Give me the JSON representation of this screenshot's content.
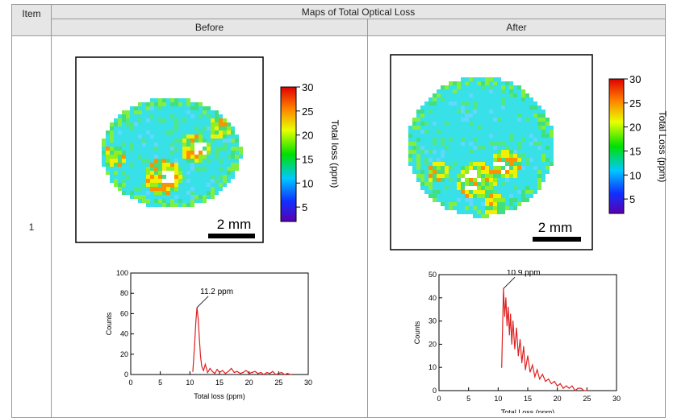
{
  "table": {
    "header_item": "Item",
    "header_title": "Maps of Total Optical Loss",
    "col_before": "Before",
    "col_after": "After",
    "row_item": "1"
  },
  "before_map": {
    "colorbar_ticks": [
      "30",
      "25",
      "20",
      "15",
      "10",
      "5"
    ],
    "colorbar_label": "Total loss (ppm)",
    "scale_label": "2 mm"
  },
  "after_map": {
    "colorbar_ticks": [
      "30",
      "25",
      "20",
      "15",
      "10",
      "5"
    ],
    "colorbar_label": "Total Loss (ppm)",
    "scale_label": "2 mm"
  },
  "chart_data": [
    {
      "type": "line",
      "xlabel": "Total loss (ppm)",
      "ylabel": "Counts",
      "xlim": [
        0,
        30
      ],
      "ylim": [
        0,
        100
      ],
      "xticks": [
        0,
        5,
        10,
        15,
        20,
        25,
        30
      ],
      "yticks": [
        0,
        20,
        40,
        60,
        80,
        100
      ],
      "annotation": {
        "text": "11.2 ppm",
        "x": 11.2,
        "y": 66
      },
      "color": "#e02020",
      "x": [
        10.5,
        10.8,
        11.0,
        11.2,
        11.4,
        11.6,
        11.8,
        12.0,
        12.3,
        12.6,
        13.0,
        13.4,
        13.8,
        14.2,
        14.6,
        15.0,
        15.5,
        16.0,
        16.5,
        17.0,
        17.5,
        18.0,
        18.5,
        19.0,
        19.5,
        20.0,
        20.5,
        21.0,
        21.5,
        22.0,
        22.5,
        23.0,
        23.5,
        24.0,
        24.5,
        25.0,
        25.5,
        26.0,
        26.5,
        27.0
      ],
      "y": [
        3,
        30,
        52,
        66,
        55,
        35,
        18,
        8,
        4,
        10,
        2,
        6,
        3,
        1,
        5,
        2,
        4,
        1,
        3,
        6,
        2,
        3,
        1,
        2,
        4,
        1,
        2,
        3,
        1,
        2,
        0,
        2,
        1,
        3,
        0,
        1,
        2,
        0,
        1,
        0
      ]
    },
    {
      "type": "line",
      "xlabel": "Total Loss (ppm)",
      "ylabel": "Counts",
      "xlim": [
        0,
        30
      ],
      "ylim": [
        0,
        50
      ],
      "xticks": [
        0,
        5,
        10,
        15,
        20,
        25,
        30
      ],
      "yticks": [
        0,
        10,
        20,
        30,
        40,
        50
      ],
      "annotation": {
        "text": "10.9 ppm",
        "x": 10.9,
        "y": 44
      },
      "color": "#e02020",
      "x": [
        10.6,
        10.9,
        11.1,
        11.3,
        11.5,
        11.7,
        11.9,
        12.1,
        12.3,
        12.5,
        12.8,
        13.1,
        13.4,
        13.7,
        14.0,
        14.3,
        14.6,
        15.0,
        15.4,
        15.8,
        16.2,
        16.6,
        17.0,
        17.5,
        18.0,
        18.5,
        19.0,
        19.5,
        20.0,
        20.5,
        21.0,
        21.5,
        22.0,
        22.5,
        23.0,
        23.5,
        24.0,
        24.5,
        25.0
      ],
      "y": [
        10,
        44,
        32,
        40,
        28,
        36,
        24,
        33,
        20,
        30,
        18,
        27,
        15,
        22,
        12,
        19,
        9,
        15,
        8,
        11,
        6,
        9,
        5,
        7,
        4,
        5,
        3,
        4,
        2,
        3,
        1,
        2,
        1,
        2,
        0,
        1,
        1,
        0,
        0
      ]
    }
  ]
}
